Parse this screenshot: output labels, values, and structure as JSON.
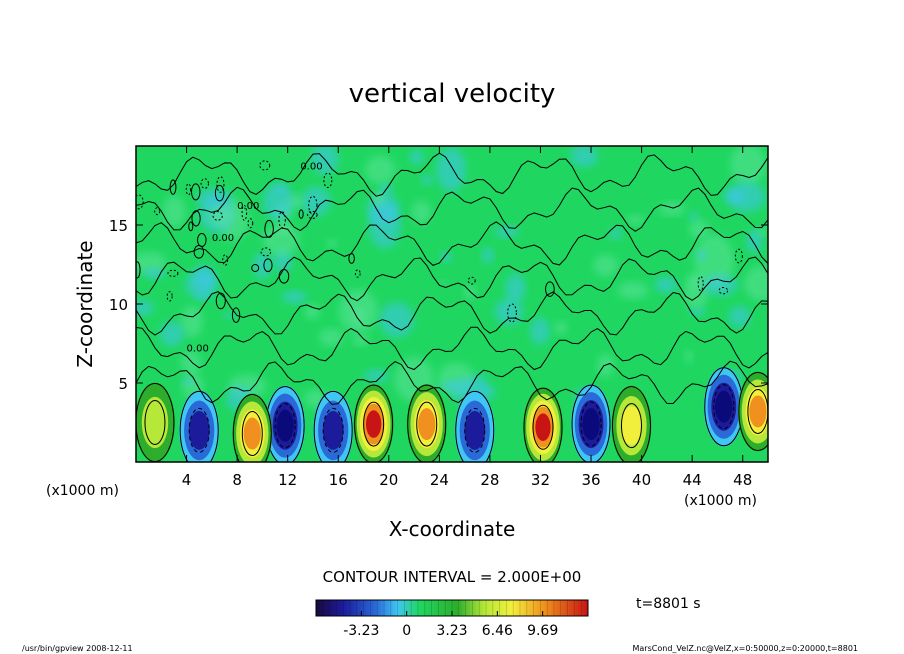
{
  "chart_data": {
    "type": "heatmap",
    "title": "vertical velocity",
    "xlabel": "X-coordinate",
    "ylabel": "Z-coordinate",
    "x_unit_label": "(x1000 m)",
    "y_unit_label": "(x1000 m)",
    "xlim": [
      0,
      50
    ],
    "ylim": [
      0,
      20
    ],
    "x_ticks": [
      "4",
      "8",
      "12",
      "16",
      "20",
      "24",
      "28",
      "32",
      "36",
      "40",
      "44",
      "48"
    ],
    "x_tick_values": [
      4,
      8,
      12,
      16,
      20,
      24,
      28,
      32,
      36,
      40,
      44,
      48
    ],
    "y_ticks": [
      "5",
      "10",
      "15"
    ],
    "y_tick_values": [
      5,
      10,
      15
    ],
    "contour_interval_text": "CONTOUR INTERVAL = 2.000E+00",
    "contour_label": "0.00",
    "colorbar": {
      "tick_labels": [
        "-3.23",
        "0",
        "3.23",
        "6.46",
        "9.69"
      ],
      "tick_values": [
        -3.23,
        0,
        3.23,
        6.46,
        9.69
      ],
      "range": [
        -6.46,
        12.92
      ]
    },
    "time_label": "t=8801 s",
    "footer_left": "/usr/bin/gpview   2008-12-11",
    "footer_right": "MarsCond_VelZ.nc@VelZ,x=0:50000,z=0:20000,t=8801",
    "features": {
      "updrafts": [
        {
          "x": 1.5,
          "z": 2.5,
          "value": 4
        },
        {
          "x": 9.2,
          "z": 1.8,
          "value": 7
        },
        {
          "x": 18.8,
          "z": 2.4,
          "value": 9.5
        },
        {
          "x": 23.0,
          "z": 2.4,
          "value": 7
        },
        {
          "x": 32.2,
          "z": 2.2,
          "value": 10
        },
        {
          "x": 39.2,
          "z": 2.3,
          "value": 5
        },
        {
          "x": 49.2,
          "z": 3.2,
          "value": 8
        }
      ],
      "downdrafts": [
        {
          "x": 5.0,
          "z": 2.0,
          "value": -4
        },
        {
          "x": 11.8,
          "z": 2.3,
          "value": -5.5
        },
        {
          "x": 15.6,
          "z": 2.0,
          "value": -4.5
        },
        {
          "x": 26.8,
          "z": 2.0,
          "value": -4.5
        },
        {
          "x": 36.0,
          "z": 2.4,
          "value": -6
        },
        {
          "x": 46.5,
          "z": 3.5,
          "value": -6
        }
      ]
    },
    "colors": {
      "background_field": "#1fd760",
      "strong_negative": "#0a0a7a",
      "strong_positive": "#e01818"
    }
  }
}
